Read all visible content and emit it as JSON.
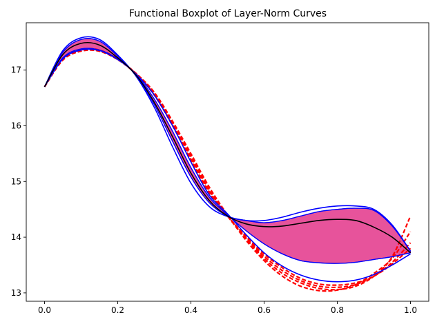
{
  "chart_data": {
    "type": "line",
    "title": "Functional Boxplot of Layer-Norm Curves",
    "xlabel": "",
    "ylabel": "",
    "xlim": [
      -0.05,
      1.05
    ],
    "ylim": [
      12.85,
      17.85
    ],
    "xticks": [
      0.0,
      0.2,
      0.4,
      0.6,
      0.8,
      1.0
    ],
    "xtick_labels": [
      "0.0",
      "0.2",
      "0.4",
      "0.6",
      "0.8",
      "1.0"
    ],
    "yticks": [
      13,
      14,
      15,
      16,
      17
    ],
    "ytick_labels": [
      "13",
      "14",
      "15",
      "16",
      "17"
    ],
    "grid": false,
    "x": [
      0.0,
      0.05,
      0.1,
      0.15,
      0.2,
      0.25,
      0.3,
      0.35,
      0.4,
      0.45,
      0.5,
      0.55,
      0.6,
      0.65,
      0.7,
      0.75,
      0.8,
      0.85,
      0.9,
      0.95,
      1.0
    ],
    "series": [
      {
        "role": "iqr_band_upper",
        "color": "#e7539b",
        "values": [
          16.7,
          17.32,
          17.55,
          17.52,
          17.25,
          16.9,
          16.38,
          15.72,
          15.08,
          14.62,
          14.38,
          14.3,
          14.26,
          14.3,
          14.38,
          14.46,
          14.5,
          14.52,
          14.48,
          14.2,
          13.75
        ]
      },
      {
        "role": "iqr_band_lower",
        "color": "#e7539b",
        "values": [
          16.7,
          17.22,
          17.38,
          17.36,
          17.2,
          16.92,
          16.48,
          15.9,
          15.25,
          14.72,
          14.4,
          14.12,
          13.88,
          13.7,
          13.58,
          13.54,
          13.53,
          13.55,
          13.6,
          13.65,
          13.72
        ]
      },
      {
        "role": "median",
        "color": "#000000",
        "values": [
          16.7,
          17.28,
          17.48,
          17.45,
          17.22,
          16.91,
          16.42,
          15.8,
          15.15,
          14.66,
          14.38,
          14.24,
          14.19,
          14.2,
          14.25,
          14.3,
          14.32,
          14.3,
          14.18,
          14.0,
          13.72
        ]
      },
      {
        "role": "envelope_outer_1",
        "color": "#0000ff",
        "values": [
          16.7,
          17.35,
          17.58,
          17.55,
          17.27,
          16.89,
          16.33,
          15.62,
          14.97,
          14.55,
          14.37,
          14.3,
          14.3,
          14.36,
          14.45,
          14.52,
          14.56,
          14.56,
          14.5,
          14.22,
          13.75
        ]
      },
      {
        "role": "envelope_outer_2",
        "color": "#0000ff",
        "values": [
          16.7,
          17.2,
          17.36,
          17.35,
          17.19,
          16.93,
          16.55,
          16.0,
          15.35,
          14.76,
          14.42,
          14.05,
          13.72,
          13.48,
          13.32,
          13.23,
          13.2,
          13.23,
          13.33,
          13.5,
          13.7
        ]
      },
      {
        "role": "outlier_1",
        "color": "#ff0000",
        "dashed": true,
        "values": [
          16.7,
          17.18,
          17.34,
          17.34,
          17.19,
          16.94,
          16.58,
          16.05,
          15.45,
          14.85,
          14.38,
          13.98,
          13.62,
          13.35,
          13.18,
          13.08,
          13.06,
          13.12,
          13.3,
          13.65,
          14.38
        ]
      },
      {
        "role": "outlier_2",
        "color": "#ff0000",
        "dashed": true,
        "values": [
          16.7,
          17.18,
          17.35,
          17.34,
          17.19,
          16.94,
          16.6,
          16.08,
          15.5,
          14.9,
          14.4,
          13.95,
          13.58,
          13.3,
          13.12,
          13.04,
          13.05,
          13.15,
          13.35,
          13.62,
          14.1
        ]
      },
      {
        "role": "outlier_3",
        "color": "#ff0000",
        "dashed": true,
        "values": [
          16.7,
          17.19,
          17.36,
          17.35,
          17.19,
          16.93,
          16.57,
          16.02,
          15.4,
          14.82,
          14.39,
          14.0,
          13.66,
          13.4,
          13.22,
          13.12,
          13.1,
          13.15,
          13.3,
          13.55,
          13.9
        ]
      },
      {
        "role": "outlier_4",
        "color": "#ff0000",
        "dashed": true,
        "values": [
          16.7,
          17.2,
          17.37,
          17.36,
          17.2,
          16.93,
          16.55,
          16.0,
          15.38,
          14.8,
          14.38,
          14.02,
          13.7,
          13.45,
          13.26,
          13.16,
          13.14,
          13.18,
          13.3,
          13.52,
          13.8
        ]
      }
    ]
  }
}
